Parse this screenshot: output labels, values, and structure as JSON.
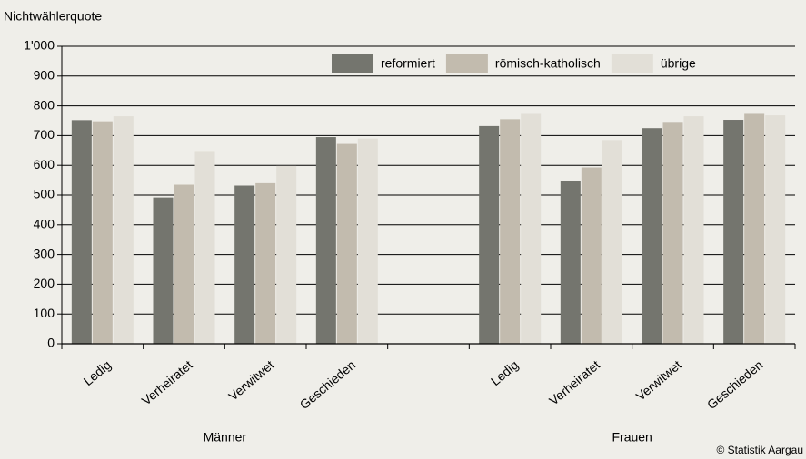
{
  "chart_data": {
    "type": "bar",
    "y_label": "Nichtwählerquote",
    "categories": [
      "Ledig",
      "Verheiratet",
      "Verwitwet",
      "Geschieden",
      null,
      "Ledig",
      "Verheiratet",
      "Verwitwet",
      "Geschieden"
    ],
    "group_labels": [
      "Männer",
      "Frauen"
    ],
    "series": [
      {
        "name": "reformiert",
        "color": "#74756e",
        "values": [
          752,
          492,
          532,
          695,
          null,
          732,
          548,
          725,
          753
        ]
      },
      {
        "name": "römisch-katholisch",
        "color": "#c2bbae",
        "values": [
          748,
          535,
          540,
          672,
          null,
          755,
          593,
          743,
          773
        ]
      },
      {
        "name": "übrige",
        "color": "#e2dfd7",
        "values": [
          765,
          645,
          598,
          690,
          null,
          773,
          685,
          765,
          768
        ]
      }
    ],
    "ylim": [
      0,
      1000
    ],
    "yticks": [
      0,
      100,
      200,
      300,
      400,
      500,
      600,
      700,
      800,
      900,
      {
        "value": 1000,
        "label": "1'000"
      }
    ],
    "grid": true,
    "legend": "top-right",
    "source": "© Statistik Aargau"
  }
}
